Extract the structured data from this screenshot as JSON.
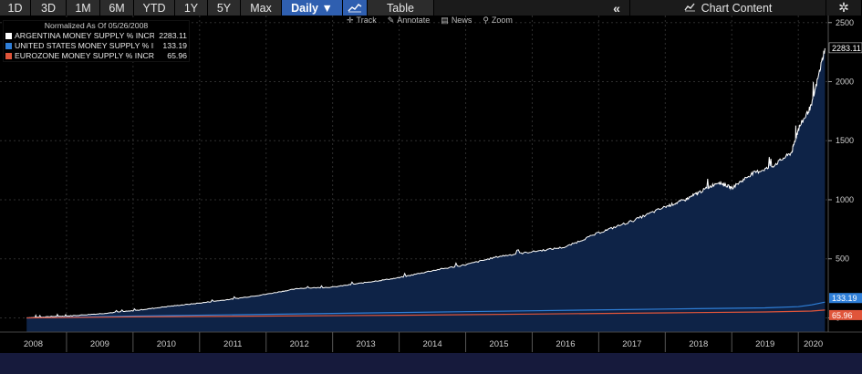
{
  "toolbar": {
    "periods": [
      "1D",
      "3D",
      "1M",
      "6M",
      "YTD",
      "1Y",
      "5Y",
      "Max"
    ],
    "frequency": "Daily ▼",
    "chart_icon": "line-chart-icon",
    "table_label": "Table",
    "collapse_icon": "double-chevron-left-icon",
    "chart_content_icon": "chart-content-icon",
    "chart_content_label": "Chart Content",
    "settings_icon": "gear-icon"
  },
  "subtools": {
    "track": "Track",
    "annotate": "Annotate",
    "news": "News",
    "zoom": "Zoom"
  },
  "legend": {
    "header": "Normalized As Of 05/26/2008",
    "rows": [
      {
        "name": "ARGENTINA MONEY SUPPLY % INCREASE",
        "value": "2283.11",
        "color": "#ffffff"
      },
      {
        "name": "UNITED STATES MONEY SUPPLY %  INCREASE",
        "value": "133.19",
        "color": "#2f7fd8"
      },
      {
        "name": "EUROZONE MONEY SUPPLY % INCREASE",
        "value": "65.96",
        "color": "#e0553a"
      }
    ]
  },
  "colors": {
    "argentina_line": "#ffffff",
    "argentina_fill": "#0e2347",
    "us": "#2f7fd8",
    "eurozone": "#e0553a",
    "background": "#000000"
  },
  "chart_data": {
    "type": "area",
    "x_unit": "year",
    "x_tick_labels": [
      "2008",
      "2009",
      "2010",
      "2011",
      "2012",
      "2013",
      "2014",
      "2015",
      "2016",
      "2017",
      "2018",
      "2019",
      "2020"
    ],
    "xlim": [
      2008.0,
      2020.45
    ],
    "ylim": [
      -120,
      2560
    ],
    "y_ticks": [
      0,
      500,
      1000,
      1500,
      2000,
      2500
    ],
    "y_tick_labels": [
      "0",
      "500",
      "1000",
      "1500",
      "2000",
      "2500"
    ],
    "grid": true,
    "series": [
      {
        "name": "ARGENTINA MONEY SUPPLY % INCREASE",
        "last_value": "2283.11",
        "x": [
          2008.4,
          2008.7,
          2009.0,
          2009.5,
          2010.0,
          2010.5,
          2011.0,
          2011.5,
          2012.0,
          2012.5,
          2013.0,
          2013.5,
          2014.0,
          2014.5,
          2015.0,
          2015.5,
          2016.0,
          2016.5,
          2017.0,
          2017.5,
          2018.0,
          2018.3,
          2018.5,
          2018.8,
          2019.0,
          2019.3,
          2019.6,
          2019.9,
          2020.0,
          2020.2,
          2020.4
        ],
        "y": [
          0,
          10,
          15,
          35,
          60,
          95,
          125,
          160,
          200,
          250,
          260,
          300,
          340,
          400,
          450,
          520,
          560,
          600,
          720,
          820,
          940,
          1000,
          1060,
          1150,
          1100,
          1220,
          1280,
          1400,
          1600,
          1800,
          2283
        ]
      },
      {
        "name": "UNITED STATES MONEY SUPPLY %  INCREASE",
        "last_value": "133.19",
        "x": [
          2008.4,
          2010.0,
          2012.0,
          2014.0,
          2016.0,
          2018.0,
          2019.5,
          2020.0,
          2020.2,
          2020.4
        ],
        "y": [
          0,
          15,
          30,
          45,
          60,
          75,
          85,
          95,
          110,
          133.19
        ]
      },
      {
        "name": "EUROZONE MONEY SUPPLY % INCREASE",
        "last_value": "65.96",
        "x": [
          2008.4,
          2010.0,
          2012.0,
          2014.0,
          2016.0,
          2018.0,
          2019.5,
          2020.2,
          2020.4
        ],
        "y": [
          0,
          8,
          15,
          22,
          32,
          42,
          50,
          58,
          65.96
        ]
      }
    ]
  }
}
